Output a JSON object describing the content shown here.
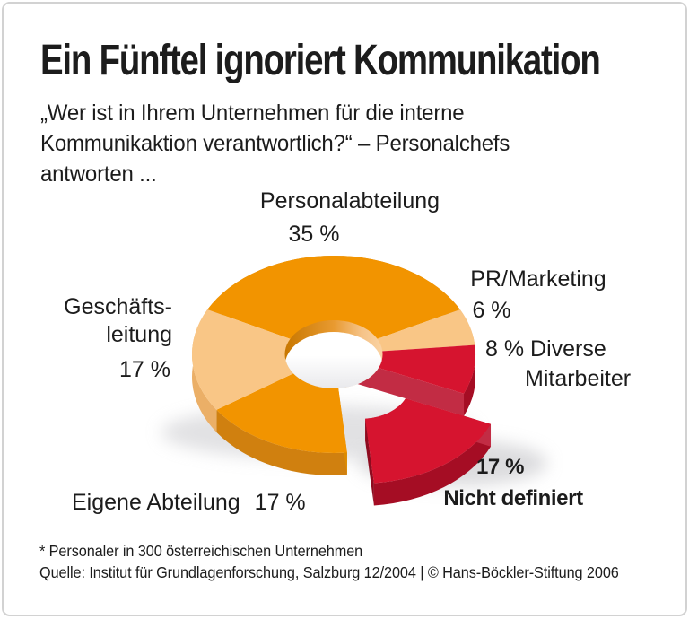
{
  "title": "Ein Fünftel ignoriert Kommunikation",
  "subtitle_lines": [
    "„Wer ist in Ihrem Unternehmen für die interne",
    "Kommunikaktion verantwortlich?“ – Personalchefs",
    "antworten ..."
  ],
  "labels": {
    "personalabteilung": {
      "name": "Personalabteilung",
      "value": "35 %"
    },
    "pr_marketing": {
      "name": "PR/Marketing",
      "value": "6 %"
    },
    "diverse": {
      "line1": "8 % Diverse",
      "line2": "Mitarbeiter"
    },
    "geschaeftsleitung": {
      "line1": "Geschäfts-",
      "line2": "leitung",
      "value": "17 %"
    },
    "eigene_abteilung": {
      "name": "Eigene Abteilung",
      "value": "17 %"
    },
    "nicht_definiert": {
      "value": "17 %",
      "name": "Nicht definiert"
    }
  },
  "footnote": "* Personaler in 300 österreichischen Unternehmen",
  "source": "Quelle: Institut für Grundlagenforschung, Salzburg 12/2004 | © Hans-Böckler-Stiftung 2006",
  "chart_data": {
    "type": "pie",
    "subtype": "3d-donut-exploded",
    "unit": "%",
    "total": 100,
    "question": "Wer ist in Ihrem Unternehmen für die interne Kommunikaktion verantwortlich?",
    "segments": [
      {
        "label": "Personalabteilung",
        "value": 35,
        "display": "35 %",
        "color_key": "orange"
      },
      {
        "label": "PR/Marketing",
        "value": 6,
        "display": "6 %",
        "color_key": "peach"
      },
      {
        "label": "Diverse Mitarbeiter",
        "value": 8,
        "display": "8 %",
        "color_key": "red"
      },
      {
        "label": "Nicht definiert",
        "value": 17,
        "display": "17 %",
        "color_key": "red",
        "exploded": true
      },
      {
        "label": "Eigene Abteilung",
        "value": 17,
        "display": "17 %",
        "color_key": "orange"
      },
      {
        "label": "Geschäftsleitung",
        "value": 17,
        "display": "17 %",
        "color_key": "peach"
      }
    ],
    "palette": {
      "orange": {
        "top": "#F29400",
        "side": "#D0800F",
        "face": "#DC8B00"
      },
      "peach": {
        "top": "#F9C686",
        "side": "#EBAF67",
        "face": "#F2BC7A"
      },
      "red": {
        "top": "#D6142F",
        "side": "#A50D24",
        "face": "#C22C44"
      }
    }
  }
}
